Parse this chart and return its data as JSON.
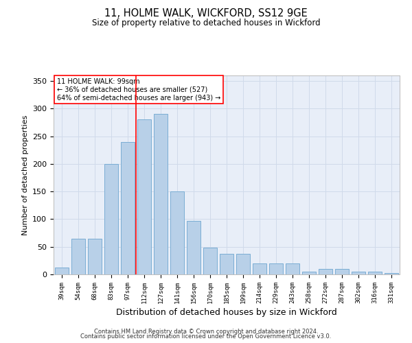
{
  "title1": "11, HOLME WALK, WICKFORD, SS12 9GE",
  "title2": "Size of property relative to detached houses in Wickford",
  "xlabel": "Distribution of detached houses by size in Wickford",
  "ylabel": "Number of detached properties",
  "categories": [
    "39sqm",
    "54sqm",
    "68sqm",
    "83sqm",
    "97sqm",
    "112sqm",
    "127sqm",
    "141sqm",
    "156sqm",
    "170sqm",
    "185sqm",
    "199sqm",
    "214sqm",
    "229sqm",
    "243sqm",
    "258sqm",
    "272sqm",
    "287sqm",
    "302sqm",
    "316sqm",
    "331sqm"
  ],
  "values": [
    12,
    65,
    65,
    200,
    240,
    280,
    290,
    150,
    97,
    48,
    37,
    37,
    20,
    20,
    20,
    5,
    10,
    10,
    5,
    5,
    3
  ],
  "bar_color": "#b8d0e8",
  "bar_edge_color": "#7aadd4",
  "grid_color": "#d0daea",
  "bg_color": "#e8eef8",
  "redline_x": 4.5,
  "annotation_lines": [
    "11 HOLME WALK: 99sqm",
    "← 36% of detached houses are smaller (527)",
    "64% of semi-detached houses are larger (943) →"
  ],
  "footer1": "Contains HM Land Registry data © Crown copyright and database right 2024.",
  "footer2": "Contains public sector information licensed under the Open Government Licence v3.0.",
  "ylim": [
    0,
    360
  ],
  "yticks": [
    0,
    50,
    100,
    150,
    200,
    250,
    300,
    350
  ]
}
